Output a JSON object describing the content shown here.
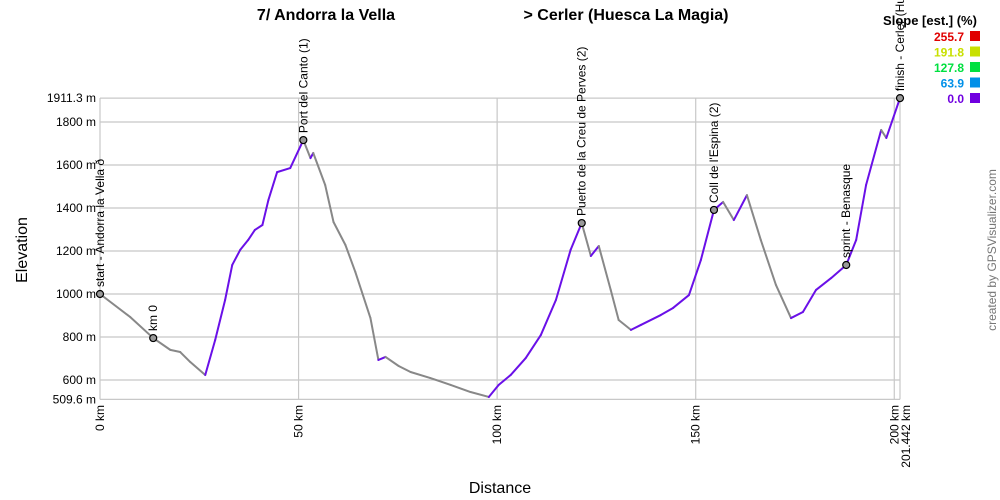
{
  "chart_data": {
    "type": "line",
    "title_left": "7/ Andorra la Vella",
    "title_right": "> Cerler (Huesca La Magia)",
    "xlabel": "Distance",
    "ylabel": "Elevation",
    "xlim": [
      0,
      201.442
    ],
    "ylim": [
      509.6,
      1911.3
    ],
    "grid": true,
    "x_ticks": [
      {
        "value": 0,
        "label": "0 km"
      },
      {
        "value": 50,
        "label": "50 km"
      },
      {
        "value": 100,
        "label": "100 km"
      },
      {
        "value": 150,
        "label": "150 km"
      },
      {
        "value": 200,
        "label": "200 km"
      },
      {
        "value": 201.442,
        "label": "201.442 km"
      }
    ],
    "y_ticks": [
      {
        "value": 1911.3,
        "label": "1911.3 m"
      },
      {
        "value": 1800,
        "label": "1800 m"
      },
      {
        "value": 1600,
        "label": "1600 m"
      },
      {
        "value": 1400,
        "label": "1400 m"
      },
      {
        "value": 1200,
        "label": "1200 m"
      },
      {
        "value": 1000,
        "label": "1000 m"
      },
      {
        "value": 800,
        "label": "800 m"
      },
      {
        "value": 600,
        "label": "600 m"
      },
      {
        "value": 509.6,
        "label": "509.6 m"
      }
    ],
    "profile": [
      [
        0,
        1000
      ],
      [
        7.6,
        893
      ],
      [
        13.4,
        795
      ],
      [
        17.7,
        740
      ],
      [
        20.2,
        730
      ],
      [
        22.7,
        684
      ],
      [
        26.5,
        623
      ],
      [
        29,
        786
      ],
      [
        31.5,
        972
      ],
      [
        33.3,
        1135
      ],
      [
        35.3,
        1205
      ],
      [
        37.3,
        1251
      ],
      [
        39,
        1298
      ],
      [
        40.9,
        1321
      ],
      [
        42.4,
        1437
      ],
      [
        44.6,
        1567
      ],
      [
        47.9,
        1586
      ],
      [
        51.2,
        1716
      ],
      [
        53,
        1632
      ],
      [
        53.7,
        1656
      ],
      [
        56.7,
        1507
      ],
      [
        58.8,
        1335
      ],
      [
        61.8,
        1228
      ],
      [
        64.3,
        1102
      ],
      [
        68.1,
        888
      ],
      [
        70.1,
        693
      ],
      [
        71.9,
        707
      ],
      [
        75.2,
        665
      ],
      [
        78.2,
        637
      ],
      [
        83.2,
        609
      ],
      [
        88.3,
        577
      ],
      [
        93.3,
        544
      ],
      [
        97.9,
        521
      ],
      [
        100.4,
        577
      ],
      [
        103.4,
        623
      ],
      [
        107.2,
        702
      ],
      [
        111,
        809
      ],
      [
        114.8,
        972
      ],
      [
        118.5,
        1205
      ],
      [
        121.3,
        1330
      ],
      [
        123.6,
        1177
      ],
      [
        125.6,
        1223
      ],
      [
        128.6,
        1019
      ],
      [
        130.6,
        879
      ],
      [
        133.7,
        833
      ],
      [
        136.2,
        856
      ],
      [
        141.2,
        902
      ],
      [
        144.3,
        935
      ],
      [
        148.3,
        995
      ],
      [
        151.3,
        1158
      ],
      [
        154.6,
        1391
      ],
      [
        156.9,
        1428
      ],
      [
        159.6,
        1344
      ],
      [
        162.9,
        1460
      ],
      [
        166.4,
        1251
      ],
      [
        170.2,
        1042
      ],
      [
        174,
        888
      ],
      [
        177,
        916
      ],
      [
        180.3,
        1019
      ],
      [
        184.1,
        1074
      ],
      [
        187.9,
        1135
      ],
      [
        190.4,
        1251
      ],
      [
        192.9,
        1507
      ],
      [
        196.7,
        1763
      ],
      [
        198,
        1726
      ],
      [
        201.442,
        1911.3
      ]
    ],
    "waypoints": [
      {
        "km": 0,
        "elev": 1000,
        "label": "start - Andorra la Vella ð"
      },
      {
        "km": 13.4,
        "elev": 795,
        "label": "km 0"
      },
      {
        "km": 51.2,
        "elev": 1716,
        "label": "Port del Canto (1)"
      },
      {
        "km": 121.3,
        "elev": 1330,
        "label": "Puerto de la Creu de Perves (2)"
      },
      {
        "km": 154.6,
        "elev": 1391,
        "label": "Coll de l'Espina (2)"
      },
      {
        "km": 187.9,
        "elev": 1135,
        "label": "sprint - Benasque"
      },
      {
        "km": 201.442,
        "elev": 1911.3,
        "label": "finish - Cerler (Hu"
      }
    ],
    "legend": {
      "title": "Slope [est.] (%)",
      "placement": "top-right",
      "entries": [
        {
          "label": "255.7",
          "color": "#e00000"
        },
        {
          "label": "191.8",
          "color": "#c8e000"
        },
        {
          "label": "127.8",
          "color": "#00e040"
        },
        {
          "label": "63.9",
          "color": "#0090e8"
        },
        {
          "label": "0.0",
          "color": "#7000e0"
        }
      ]
    },
    "colors": {
      "uphill": "#6a10e8",
      "downhill": "#888888",
      "grid": "#c8c8c8"
    }
  },
  "watermark": "created by GPSVisualizer.com"
}
